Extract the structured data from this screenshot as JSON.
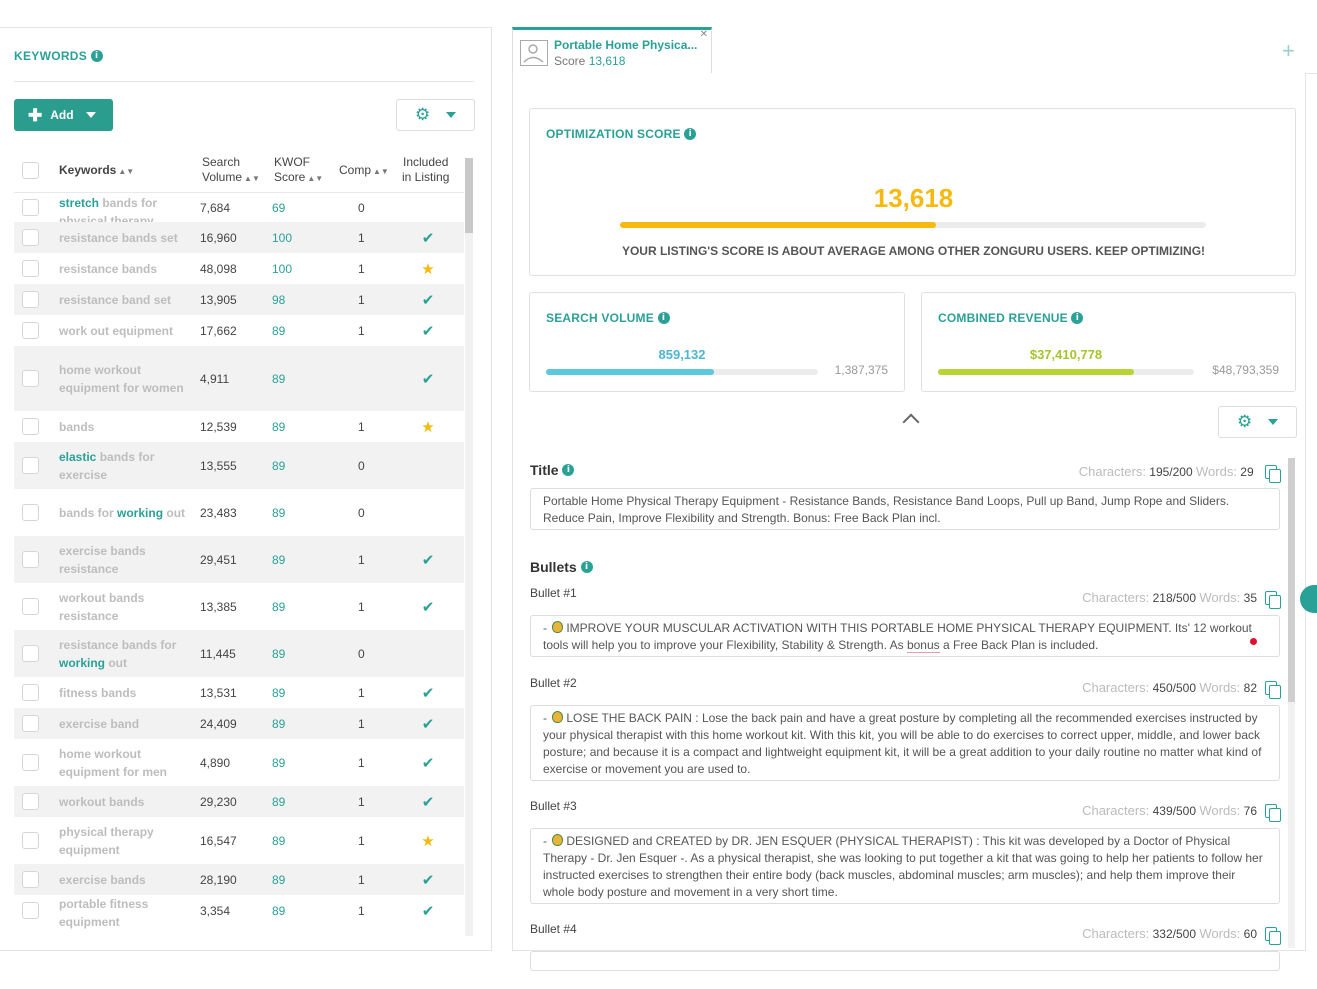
{
  "keywords_panel": {
    "title": "KEYWORDS",
    "add_label": "Add",
    "columns": {
      "keywords": "Keywords",
      "search_volume": [
        "Search",
        "Volume"
      ],
      "kwof_score": [
        "KWOF",
        "Score"
      ],
      "comp": "Comp",
      "included": [
        "Included",
        "in Listing"
      ]
    },
    "rows": [
      {
        "keyword_parts": [
          {
            "t": "stretch",
            "hl": true
          },
          {
            "t": " bands for physical therapy",
            "hl": false
          }
        ],
        "volume": "7,684",
        "score": "69",
        "comp": "0",
        "included": "none"
      },
      {
        "keyword_parts": [
          {
            "t": "resistance bands set",
            "hl": false
          }
        ],
        "volume": "16,960",
        "score": "100",
        "comp": "1",
        "included": "check"
      },
      {
        "keyword_parts": [
          {
            "t": "resistance bands",
            "hl": false
          }
        ],
        "volume": "48,098",
        "score": "100",
        "comp": "1",
        "included": "star"
      },
      {
        "keyword_parts": [
          {
            "t": "resistance band set",
            "hl": false
          }
        ],
        "volume": "13,905",
        "score": "98",
        "comp": "1",
        "included": "check"
      },
      {
        "keyword_parts": [
          {
            "t": "work out equipment",
            "hl": false
          }
        ],
        "volume": "17,662",
        "score": "89",
        "comp": "1",
        "included": "check"
      },
      {
        "keyword_parts": [
          {
            "t": "home workout equipment for women",
            "hl": false
          }
        ],
        "volume": "4,911",
        "score": "89",
        "comp": "",
        "included": "check"
      },
      {
        "keyword_parts": [
          {
            "t": "bands",
            "hl": false
          }
        ],
        "volume": "12,539",
        "score": "89",
        "comp": "1",
        "included": "star"
      },
      {
        "keyword_parts": [
          {
            "t": "elastic",
            "hl": true
          },
          {
            "t": " bands for exercise",
            "hl": false
          }
        ],
        "volume": "13,555",
        "score": "89",
        "comp": "0",
        "included": "none"
      },
      {
        "keyword_parts": [
          {
            "t": "bands for ",
            "hl": false
          },
          {
            "t": "working",
            "hl": true
          },
          {
            "t": " out",
            "hl": false
          }
        ],
        "volume": "23,483",
        "score": "89",
        "comp": "0",
        "included": "none"
      },
      {
        "keyword_parts": [
          {
            "t": "exercise bands resistance",
            "hl": false
          }
        ],
        "volume": "29,451",
        "score": "89",
        "comp": "1",
        "included": "check"
      },
      {
        "keyword_parts": [
          {
            "t": "workout bands resistance",
            "hl": false
          }
        ],
        "volume": "13,385",
        "score": "89",
        "comp": "1",
        "included": "check"
      },
      {
        "keyword_parts": [
          {
            "t": "resistance bands for ",
            "hl": false
          },
          {
            "t": "working",
            "hl": true
          },
          {
            "t": " out",
            "hl": false
          }
        ],
        "volume": "11,445",
        "score": "89",
        "comp": "0",
        "included": "none"
      },
      {
        "keyword_parts": [
          {
            "t": "fitness bands",
            "hl": false
          }
        ],
        "volume": "13,531",
        "score": "89",
        "comp": "1",
        "included": "check"
      },
      {
        "keyword_parts": [
          {
            "t": "exercise band",
            "hl": false
          }
        ],
        "volume": "24,409",
        "score": "89",
        "comp": "1",
        "included": "check"
      },
      {
        "keyword_parts": [
          {
            "t": "home workout equipment for men",
            "hl": false
          }
        ],
        "volume": "4,890",
        "score": "89",
        "comp": "1",
        "included": "check"
      },
      {
        "keyword_parts": [
          {
            "t": "workout bands",
            "hl": false
          }
        ],
        "volume": "29,230",
        "score": "89",
        "comp": "1",
        "included": "check"
      },
      {
        "keyword_parts": [
          {
            "t": "physical therapy equipment",
            "hl": false
          }
        ],
        "volume": "16,547",
        "score": "89",
        "comp": "1",
        "included": "star"
      },
      {
        "keyword_parts": [
          {
            "t": "exercise bands",
            "hl": false
          }
        ],
        "volume": "28,190",
        "score": "89",
        "comp": "1",
        "included": "check"
      },
      {
        "keyword_parts": [
          {
            "t": "portable fitness equipment",
            "hl": false
          }
        ],
        "volume": "3,354",
        "score": "89",
        "comp": "1",
        "included": "check"
      }
    ]
  },
  "listing_tab": {
    "title": "Portable Home Physica...",
    "score_label": "Score",
    "score_value": "13,618"
  },
  "optimization": {
    "title": "OPTIMIZATION SCORE",
    "score": "13,618",
    "progress_fraction": 0.54,
    "message": "YOUR LISTING'S SCORE IS ABOUT AVERAGE AMONG OTHER ZONGURU USERS. KEEP OPTIMIZING!"
  },
  "search_volume": {
    "title": "SEARCH VOLUME",
    "value": "859,132",
    "max": "1,387,375",
    "progress_fraction": 0.619
  },
  "combined_revenue": {
    "title": "COMBINED REVENUE",
    "value": "$37,410,778",
    "max": "$48,793,359",
    "progress_fraction": 0.767
  },
  "colors": {
    "accent": "#2aa197",
    "score": "#f5b90f",
    "search_bar": "#5bc8dc",
    "revenue": "#b8d433"
  },
  "title_section": {
    "label": "Title",
    "characters_label": "Characters:",
    "characters": "195/200",
    "words_label": "Words:",
    "words": "29",
    "text": "Portable Home Physical Therapy Equipment - Resistance Bands, Resistance Band Loops, Pull up Band, Jump Rope and Sliders. Reduce Pain, Improve Flexibility and Strength. Bonus: Free Back Plan incl."
  },
  "bullets_section": {
    "label": "Bullets",
    "bullets": [
      {
        "label": "Bullet #1",
        "characters": "218/500",
        "words": "35",
        "text_before": "IMPROVE YOUR MUSCULAR ACTIVATION WITH THIS PORTABLE HOME PHYSICAL THERAPY EQUIPMENT. Its' 12 workout tools will help you to improve your Flexibility, Stability & Strength. As ",
        "text_underlined": "bonus",
        "text_after": " a Free Back Plan is included."
      },
      {
        "label": "Bullet #2",
        "characters": "450/500",
        "words": "82",
        "text_before": "LOSE THE BACK PAIN : Lose the back pain and have a great posture by completing all the recommended exercises instructed by your physical therapist with this home workout kit. With this kit, you will be able to do exercises to correct upper, middle, and lower back posture; and because it is a compact and lightweight equipment kit, it will be a great addition to your daily routine no matter what kind of exercise or movement you are used to.",
        "text_underlined": "",
        "text_after": ""
      },
      {
        "label": "Bullet #3",
        "characters": "439/500",
        "words": "76",
        "text_before": "DESIGNED and CREATED by DR. JEN ESQUER (PHYSICAL THERAPIST) : This kit was developed by a Doctor of Physical Therapy - Dr. Jen Esquer -. As a physical therapist, she was looking to put together a kit that was going to help her patients to follow her instructed exercises to strengthen their entire body (back muscles, abdominal muscles; arm muscles); and help them improve their whole body posture and movement in a very short time.",
        "text_underlined": "",
        "text_after": ""
      },
      {
        "label": "Bullet #4",
        "characters": "332/500",
        "words": "60",
        "text_before": "",
        "text_underlined": "",
        "text_after": ""
      }
    ]
  }
}
